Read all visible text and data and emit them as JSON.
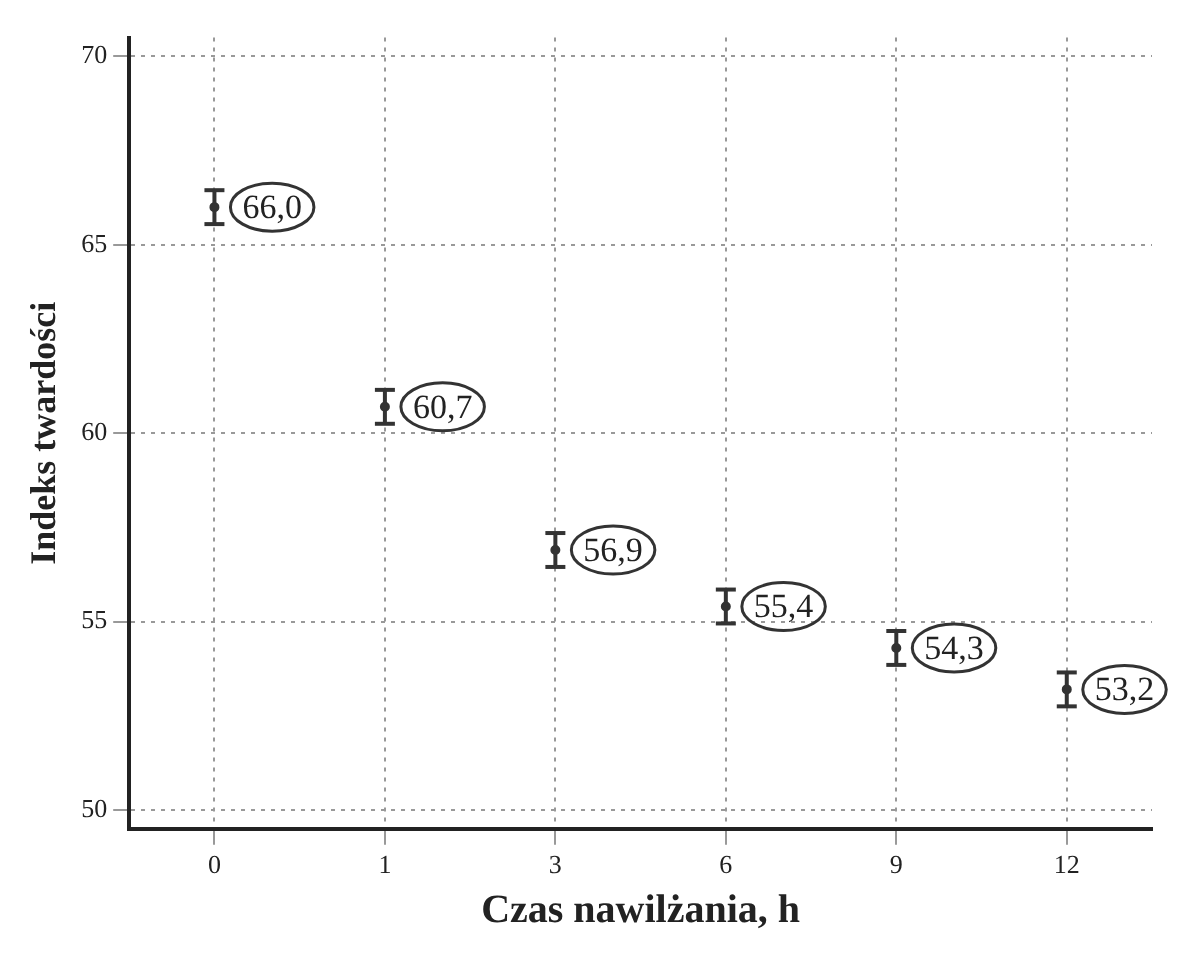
{
  "chart_data": {
    "type": "scatter",
    "xlabel": "Czas nawilżania, h",
    "ylabel": "Indeks twardości",
    "categories": [
      "0",
      "1",
      "3",
      "6",
      "9",
      "12"
    ],
    "values": [
      66.0,
      60.7,
      56.9,
      55.4,
      54.3,
      53.2
    ],
    "errors": [
      0.45,
      0.45,
      0.45,
      0.45,
      0.45,
      0.45
    ],
    "value_labels": [
      "66,0",
      "60,7",
      "56,9",
      "55,4",
      "54,3",
      "53,2"
    ],
    "color": "#333333",
    "ylim": [
      49.5,
      70.5
    ],
    "yticks": [
      50,
      55,
      60,
      65,
      70
    ],
    "grid": true,
    "legend": false
  }
}
